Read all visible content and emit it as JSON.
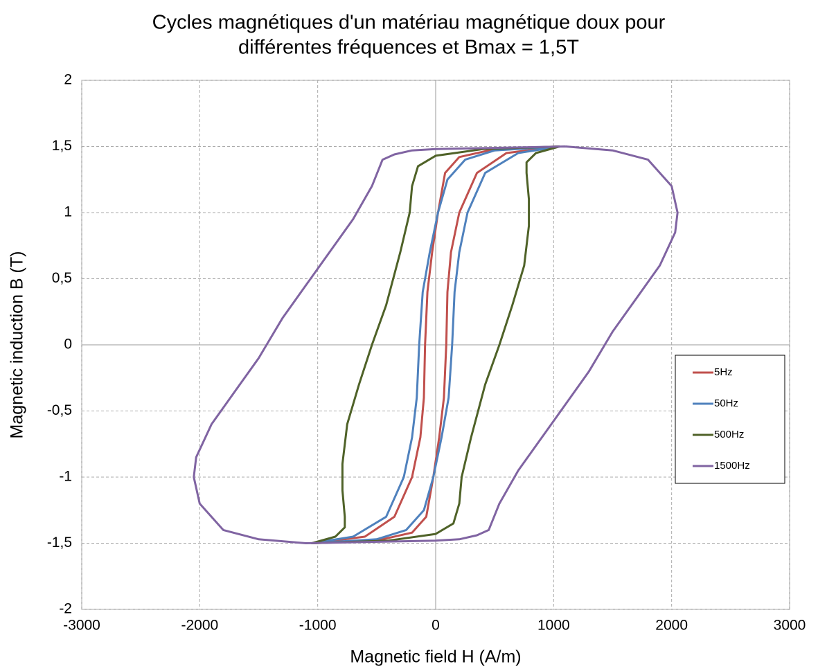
{
  "chart_data": {
    "type": "line",
    "title": [
      "Cycles magnétiques d'un matériau magnétique doux pour",
      "différentes fréquences et Bmax = 1,5T"
    ],
    "x_label": "Magnetic  field H (A/m)",
    "y_label": "Magnetic  induction B (T)",
    "xlim": [
      -3000,
      3000
    ],
    "xticks": [
      -3000,
      -2000,
      -1000,
      0,
      1000,
      2000,
      3000
    ],
    "ylim": [
      -2,
      2
    ],
    "yticks": [
      -2,
      {
        "value": -1.5,
        "label": "-1,5"
      },
      -1,
      {
        "value": -0.5,
        "label": "-0,5"
      },
      0,
      {
        "value": 0.5,
        "label": "0,5"
      },
      1,
      {
        "value": 1.5,
        "label": "1,5"
      },
      2
    ],
    "grid": true,
    "legend": "right",
    "series": [
      {
        "name": "5Hz",
        "color": "#c0504d",
        "x": [
          1050,
          500,
          200,
          80,
          20,
          -30,
          -70,
          -90,
          -100,
          -130,
          -200,
          -350,
          -600,
          -1050,
          -500,
          -200,
          -80,
          -20,
          30,
          70,
          90,
          100,
          130,
          200,
          350,
          600,
          1050
        ],
        "values": [
          1.5,
          1.48,
          1.42,
          1.3,
          1.0,
          0.7,
          0.4,
          0,
          -0.4,
          -0.7,
          -1.0,
          -1.3,
          -1.45,
          -1.5,
          -1.48,
          -1.42,
          -1.3,
          -1.0,
          -0.7,
          -0.4,
          0,
          0.4,
          0.7,
          1.0,
          1.3,
          1.45,
          1.5
        ]
      },
      {
        "name": "50Hz",
        "color": "#4f81bd",
        "x": [
          1050,
          500,
          250,
          100,
          20,
          -50,
          -110,
          -140,
          -160,
          -200,
          -270,
          -420,
          -700,
          -1050,
          -500,
          -250,
          -100,
          -20,
          50,
          110,
          140,
          160,
          200,
          270,
          420,
          700,
          1050
        ],
        "values": [
          1.5,
          1.47,
          1.4,
          1.25,
          1.0,
          0.7,
          0.4,
          0,
          -0.4,
          -0.7,
          -1.0,
          -1.3,
          -1.45,
          -1.5,
          -1.47,
          -1.4,
          -1.25,
          -1.0,
          -0.7,
          -0.4,
          0,
          0.4,
          0.7,
          1.0,
          1.3,
          1.45,
          1.5
        ]
      },
      {
        "name": "500Hz",
        "color": "#4f6228",
        "x": [
          1050,
          400,
          0,
          -150,
          -200,
          -220,
          -300,
          -420,
          -540,
          -650,
          -750,
          -790,
          -790,
          -770,
          -770,
          -850,
          -1050,
          -400,
          0,
          150,
          200,
          220,
          300,
          420,
          540,
          650,
          750,
          790,
          790,
          770,
          770,
          850,
          1050
        ],
        "values": [
          1.5,
          1.48,
          1.43,
          1.35,
          1.2,
          1.0,
          0.7,
          0.3,
          0,
          -0.3,
          -0.6,
          -0.9,
          -1.1,
          -1.3,
          -1.38,
          -1.45,
          -1.5,
          -1.48,
          -1.43,
          -1.35,
          -1.2,
          -1.0,
          -0.7,
          -0.3,
          0,
          0.3,
          0.6,
          0.9,
          1.1,
          1.3,
          1.38,
          1.45,
          1.5
        ]
      },
      {
        "name": "1500Hz",
        "color": "#8064a2",
        "x": [
          1100,
          0,
          -200,
          -350,
          -450,
          -540,
          -700,
          -900,
          -1100,
          -1300,
          -1500,
          -1700,
          -1900,
          -2030,
          -2050,
          -2000,
          -1800,
          -1500,
          -1100,
          0,
          200,
          350,
          450,
          540,
          700,
          900,
          1100,
          1300,
          1500,
          1700,
          1900,
          2030,
          2050,
          2000,
          1800,
          1500,
          1100
        ],
        "values": [
          1.5,
          1.48,
          1.47,
          1.44,
          1.4,
          1.2,
          0.95,
          0.7,
          0.45,
          0.2,
          -0.1,
          -0.35,
          -0.6,
          -0.85,
          -1.0,
          -1.2,
          -1.4,
          -1.47,
          -1.5,
          -1.48,
          -1.47,
          -1.44,
          -1.4,
          -1.2,
          -0.95,
          -0.7,
          -0.45,
          -0.2,
          0.1,
          0.35,
          0.6,
          0.85,
          1.0,
          1.2,
          1.4,
          1.47,
          1.5
        ]
      }
    ]
  }
}
